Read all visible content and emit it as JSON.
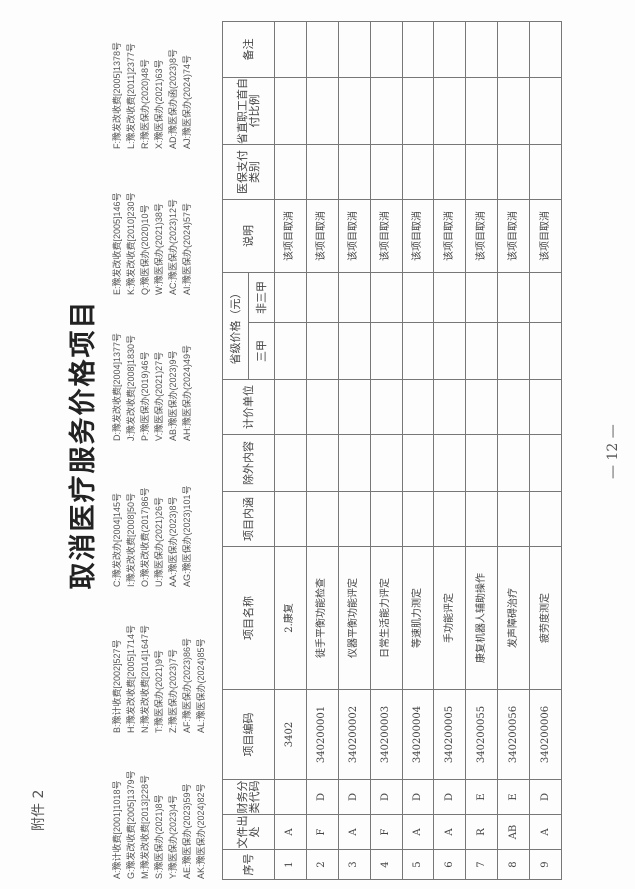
{
  "attachment_label": "附件 2",
  "title": "取消医疗服务价格项目",
  "legend": [
    [
      "A:豫计收费[2001]1018号",
      "B:豫计收费[2002]527号",
      "C:豫发改办[2004]145号",
      "D:豫发改收费[2004]1377号",
      "E:豫发改收费[2005]146号",
      "F:豫发改收费[2005]1378号"
    ],
    [
      "G:豫发改收费[2005]1379号",
      "H:豫发改收费[2005]1714号",
      "I:豫发改收费[2008]50号",
      "J:豫发改收费[2008]1830号",
      "K:豫发改收费[2010]230号",
      "L:豫发改收费[2011]2377号"
    ],
    [
      "M:豫发改收费[2013]228号",
      "N:豫发改收费[2014]1647号",
      "O:豫发改收费(2017)86号",
      "P:豫医保办(2019)46号",
      "Q:豫医保办(2020)10号",
      "R:豫医保办(2020)48号"
    ],
    [
      "S:豫医保办(2021)8号",
      "T:豫医保办(2021)9号",
      "U:豫医保办(2021)26号",
      "V:豫医保办(2021)27号",
      "W:豫医保办(2021)38号",
      "X:豫医保办(2021)63号"
    ],
    [
      "Y:豫医保办(2023)4号",
      "Z:豫医保办(2023)7号",
      "AA:豫医保办(2023)8号",
      "AB:豫医保办(2023)9号",
      "AC:豫医保办(2023)12号",
      "AD:豫医保办函(2023)8号"
    ],
    [
      "AE:豫医保办(2023)59号",
      "AF:豫医保办(2023)86号",
      "AG:豫医保办(2023)101号",
      "AH:豫医保办(2024)49号",
      "AI:豫医保办(2024)57号",
      "AJ:豫医保办(2024)74号"
    ],
    [
      "AK:豫医保办(2024)82号",
      "AL:豫医保办(2024)85号"
    ]
  ],
  "table": {
    "headers": {
      "seq": "序号",
      "source": "文件出处",
      "finance_code": "财务分类代码",
      "code": "项目编码",
      "name": "项目名称",
      "content": "项目内涵",
      "excluded": "除外内容",
      "unit": "计价单位",
      "price": "省级价格（元）",
      "tier3a": "三甲",
      "non_tier3a": "非三甲",
      "note": "说明",
      "insurance": "医保支付类别",
      "self_pay": "省直职工首自付比例",
      "remark": "备注"
    },
    "rows": [
      [
        "1",
        "A",
        "",
        "3402",
        "2.康复",
        "",
        "",
        "",
        "",
        "",
        "该项目取消",
        "",
        "",
        ""
      ],
      [
        "2",
        "F",
        "D",
        "340200001",
        "徒手平衡功能检查",
        "",
        "",
        "",
        "",
        "",
        "该项目取消",
        "",
        "",
        ""
      ],
      [
        "3",
        "A",
        "D",
        "340200002",
        "仪器平衡功能评定",
        "",
        "",
        "",
        "",
        "",
        "该项目取消",
        "",
        "",
        ""
      ],
      [
        "4",
        "F",
        "D",
        "340200003",
        "日常生活能力评定",
        "",
        "",
        "",
        "",
        "",
        "该项目取消",
        "",
        "",
        ""
      ],
      [
        "5",
        "A",
        "D",
        "340200004",
        "等速肌力测定",
        "",
        "",
        "",
        "",
        "",
        "该项目取消",
        "",
        "",
        ""
      ],
      [
        "6",
        "A",
        "D",
        "340200005",
        "手功能评定",
        "",
        "",
        "",
        "",
        "",
        "该项目取消",
        "",
        "",
        ""
      ],
      [
        "7",
        "R",
        "E",
        "340200055",
        "康复机器人辅助操作",
        "",
        "",
        "",
        "",
        "",
        "该项目取消",
        "",
        "",
        ""
      ],
      [
        "8",
        "AB",
        "E",
        "340200056",
        "发声障碍治疗",
        "",
        "",
        "",
        "",
        "",
        "该项目取消",
        "",
        "",
        ""
      ],
      [
        "9",
        "A",
        "D",
        "340200006",
        "疲劳度测定",
        "",
        "",
        "",
        "",
        "",
        "该项目取消",
        "",
        "",
        ""
      ]
    ]
  },
  "page_number": "— 12 —"
}
